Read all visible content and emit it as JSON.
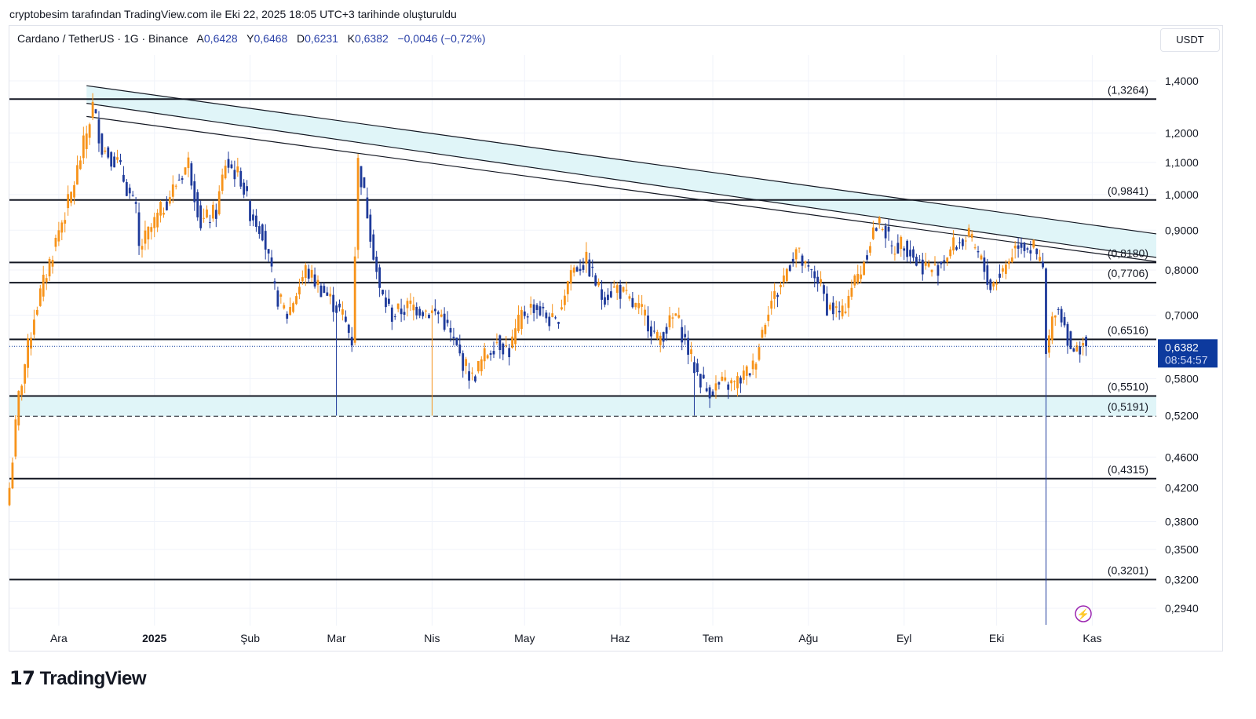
{
  "credit": "cryptobesim tarafından TradingView.com ile Eki 22, 2025 18:05 UTC+3 tarihinde oluşturuldu",
  "legend": {
    "symbol": "Cardano / TetherUS · 1G · Binance",
    "o_label": "A",
    "o": "0,6428",
    "h_label": "Y",
    "h": "0,6468",
    "l_label": "D",
    "l": "0,6231",
    "c_label": "K",
    "c": "0,6382",
    "change": "−0,0046 (−0,72%)"
  },
  "currency": "USDT",
  "last_price": {
    "value": "0,6382",
    "countdown": "08:54:57"
  },
  "logo": "TradingView",
  "colors": {
    "up": "#f7931a",
    "down": "#1e3a9a",
    "accent": "#0d3a9e",
    "band": "#e0f5f8"
  },
  "chart_data": {
    "type": "candlestick",
    "scale": "log",
    "ylim": [
      0.28,
      1.52
    ],
    "y_ticks": [
      "1,4000",
      "1,2000",
      "1,1000",
      "1,0000",
      "0,9000",
      "0,8000",
      "0,7000",
      "0,5800",
      "0,5200",
      "0,4600",
      "0,4200",
      "0,3800",
      "0,3500",
      "0,3200",
      "0,2940"
    ],
    "y_tick_values": [
      1.4,
      1.2,
      1.1,
      1.0,
      0.9,
      0.8,
      0.7,
      0.58,
      0.52,
      0.46,
      0.42,
      0.38,
      0.35,
      0.32,
      0.294
    ],
    "x_ticks": [
      "Ara",
      "2025",
      "Şub",
      "Mar",
      "Nis",
      "May",
      "Haz",
      "Tem",
      "Ağu",
      "Eyl",
      "Eki",
      "Kas"
    ],
    "x_tick_days": [
      16,
      47,
      78,
      106,
      137,
      167,
      198,
      228,
      259,
      290,
      320,
      351
    ],
    "levels": [
      {
        "value": 1.3264,
        "label": "(1,3264)"
      },
      {
        "value": 0.9841,
        "label": "(0,9841)"
      },
      {
        "value": 0.818,
        "label": "(0,8180)"
      },
      {
        "value": 0.7706,
        "label": "(0,7706)"
      },
      {
        "value": 0.6516,
        "label": "(0,6516)"
      },
      {
        "value": 0.551,
        "label": "(0,5510)"
      },
      {
        "value": 0.5191,
        "label": "(0,5191)",
        "dashed": true
      },
      {
        "value": 0.4315,
        "label": "(0,4315)"
      },
      {
        "value": 0.3201,
        "label": "(0,3201)"
      }
    ],
    "support_zone": [
      0.5191,
      0.551
    ],
    "close_anchors": [
      [
        0,
        0.42
      ],
      [
        3,
        0.55
      ],
      [
        8,
        0.7
      ],
      [
        16,
        0.9
      ],
      [
        20,
        1.0
      ],
      [
        25,
        1.2
      ],
      [
        27,
        1.3
      ],
      [
        30,
        1.15
      ],
      [
        35,
        1.1
      ],
      [
        41,
        0.95
      ],
      [
        42,
        0.85
      ],
      [
        47,
        0.92
      ],
      [
        55,
        1.05
      ],
      [
        58,
        1.1
      ],
      [
        62,
        0.92
      ],
      [
        67,
        0.95
      ],
      [
        70,
        1.1
      ],
      [
        75,
        1.05
      ],
      [
        78,
        0.95
      ],
      [
        82,
        0.9
      ],
      [
        86,
        0.75
      ],
      [
        90,
        0.7
      ],
      [
        96,
        0.8
      ],
      [
        102,
        0.75
      ],
      [
        108,
        0.7
      ],
      [
        111,
        0.65
      ],
      [
        113,
        1.1
      ],
      [
        116,
        0.95
      ],
      [
        120,
        0.75
      ],
      [
        124,
        0.7
      ],
      [
        130,
        0.72
      ],
      [
        140,
        0.7
      ],
      [
        146,
        0.62
      ],
      [
        150,
        0.58
      ],
      [
        154,
        0.62
      ],
      [
        158,
        0.65
      ],
      [
        162,
        0.63
      ],
      [
        166,
        0.7
      ],
      [
        170,
        0.72
      ],
      [
        177,
        0.68
      ],
      [
        182,
        0.8
      ],
      [
        187,
        0.82
      ],
      [
        192,
        0.74
      ],
      [
        197,
        0.76
      ],
      [
        202,
        0.72
      ],
      [
        206,
        0.7
      ],
      [
        210,
        0.65
      ],
      [
        216,
        0.7
      ],
      [
        222,
        0.6
      ],
      [
        226,
        0.56
      ],
      [
        231,
        0.57
      ],
      [
        235,
        0.57
      ],
      [
        241,
        0.6
      ],
      [
        246,
        0.72
      ],
      [
        249,
        0.75
      ],
      [
        253,
        0.82
      ],
      [
        255,
        0.85
      ],
      [
        258,
        0.8
      ],
      [
        262,
        0.78
      ],
      [
        265,
        0.72
      ],
      [
        270,
        0.7
      ],
      [
        272,
        0.75
      ],
      [
        276,
        0.8
      ],
      [
        280,
        0.9
      ],
      [
        283,
        0.92
      ],
      [
        286,
        0.85
      ],
      [
        290,
        0.87
      ],
      [
        294,
        0.82
      ],
      [
        300,
        0.8
      ],
      [
        306,
        0.86
      ],
      [
        311,
        0.88
      ],
      [
        315,
        0.82
      ],
      [
        318,
        0.76
      ],
      [
        322,
        0.8
      ],
      [
        327,
        0.87
      ],
      [
        332,
        0.85
      ],
      [
        335,
        0.8
      ],
      [
        336,
        0.62
      ],
      [
        339,
        0.72
      ],
      [
        341,
        0.7
      ],
      [
        345,
        0.62
      ],
      [
        348,
        0.65
      ],
      [
        349,
        0.638
      ]
    ],
    "trendlines": [
      {
        "from": [
          25,
          1.38
        ],
        "to": [
          372,
          0.89
        ]
      },
      {
        "from": [
          25,
          1.31
        ],
        "to": [
          372,
          0.83
        ]
      },
      {
        "from": [
          25,
          1.26
        ],
        "to": [
          372,
          0.82
        ]
      }
    ]
  }
}
